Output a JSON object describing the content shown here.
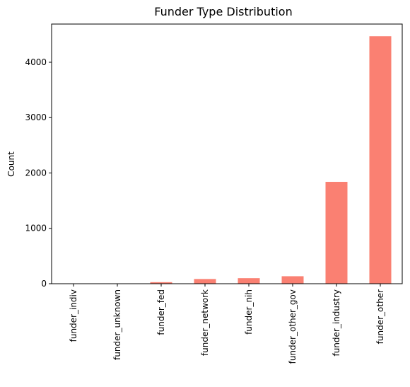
{
  "chart_data": {
    "type": "bar",
    "title": "Funder Type Distribution",
    "xlabel": "",
    "ylabel": "Count",
    "categories": [
      "funder_indiv",
      "funder_unknown",
      "funder_fed",
      "funder_network",
      "funder_nih",
      "funder_other_gov",
      "funder_industry",
      "funder_other"
    ],
    "values": [
      3,
      6,
      28,
      85,
      100,
      135,
      1840,
      4470
    ],
    "ylim": [
      0,
      4690
    ],
    "yticks": [
      0,
      1000,
      2000,
      3000,
      4000
    ],
    "bar_color": "#fa8072",
    "grid": false,
    "legend": "none"
  }
}
